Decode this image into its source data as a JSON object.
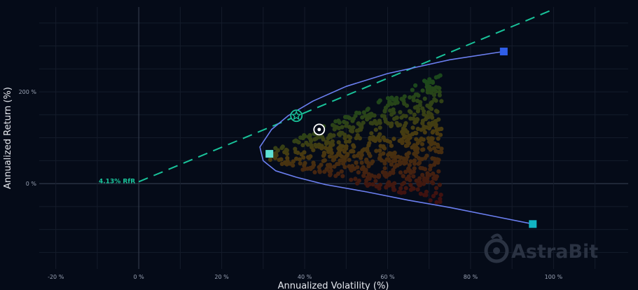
{
  "chart_data": {
    "type": "scatter",
    "xlabel": "Annualized Volatility (%)",
    "ylabel": "Annualized Return (%)",
    "xlim": [
      -24,
      118
    ],
    "ylim": [
      -186,
      385
    ],
    "x_ticks": [
      -20,
      0,
      20,
      40,
      60,
      80,
      100
    ],
    "x_tick_labels": [
      "-20 %",
      "0 %",
      "20 %",
      "40 %",
      "60 %",
      "80 %",
      "100 %"
    ],
    "y_ticks": [
      0,
      200
    ],
    "y_tick_labels": [
      "0 %",
      "200 %"
    ],
    "risk_free_rate_label": "4.13% RfR",
    "risk_free_rate": 4.13,
    "capital_market_line": {
      "from": [
        0,
        4.13
      ],
      "to": [
        100,
        380
      ],
      "style": "dashed",
      "color": "#19c39a"
    },
    "efficient_frontier": {
      "color": "#6b7ff0",
      "points": [
        [
          88,
          288
        ],
        [
          75,
          270
        ],
        [
          60,
          240
        ],
        [
          50,
          212
        ],
        [
          42,
          180
        ],
        [
          36,
          148
        ],
        [
          32,
          118
        ],
        [
          29.2,
          80
        ],
        [
          30,
          50
        ],
        [
          33,
          28
        ],
        [
          38,
          14
        ],
        [
          45,
          -2
        ],
        [
          55,
          -18
        ],
        [
          65,
          -36
        ],
        [
          75,
          -52
        ],
        [
          85,
          -70
        ],
        [
          95,
          -88
        ]
      ]
    },
    "highlighted_portfolios": [
      {
        "type": "max-sharpe",
        "x": 38,
        "y": 148,
        "marker": "star-circle",
        "color": "#19c39a"
      },
      {
        "type": "equal-weight",
        "x": 43.5,
        "y": 118,
        "marker": "target-circle",
        "color": "#ffffff"
      },
      {
        "type": "min-volatility",
        "x": 31.5,
        "y": 65,
        "marker": "square",
        "color": "#5ee1d5"
      },
      {
        "type": "asset",
        "x": 88,
        "y": 288,
        "marker": "square",
        "color": "#2f5ee8"
      },
      {
        "type": "asset",
        "x": 95,
        "y": -88,
        "marker": "square",
        "color": "#12b6c4"
      }
    ],
    "simulated_portfolios": {
      "count": 700,
      "color_scale": [
        "#3f1010",
        "#4a3a10",
        "#124a1e"
      ],
      "volatility_range": [
        31,
        73
      ],
      "return_range": [
        -50,
        240
      ]
    },
    "grid": true
  },
  "watermark": {
    "text": "AstraBit"
  },
  "colors": {
    "background": "#050b18",
    "grid": "#151c2b",
    "zero_line": "#3a4354",
    "frontier": "#6b7ff0",
    "cml": "#19c39a"
  }
}
